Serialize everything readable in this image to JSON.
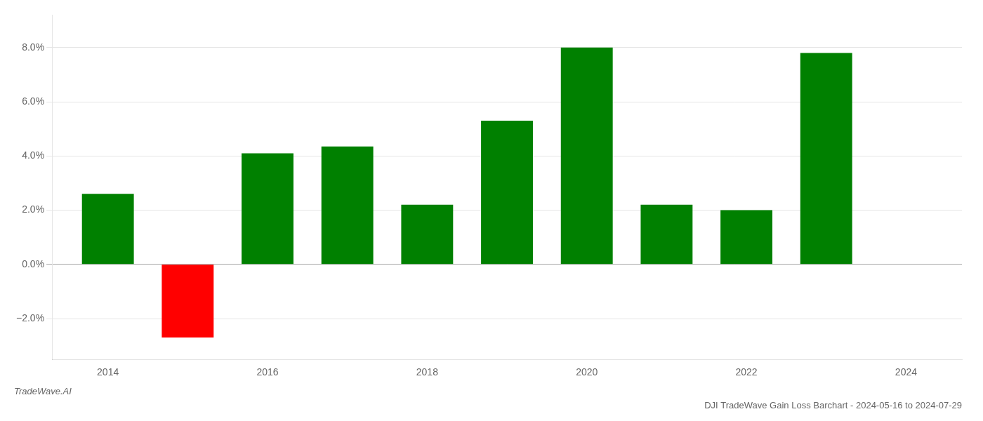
{
  "chart_data": {
    "type": "bar",
    "title": "DJI TradeWave Gain Loss Barchart - 2024-05-16 to 2024-07-29",
    "annotations": [
      "TradeWave.AI"
    ],
    "x": [
      2014,
      2015,
      2016,
      2017,
      2018,
      2019,
      2020,
      2021,
      2022,
      2023
    ],
    "values": [
      2.6,
      -2.7,
      4.1,
      4.35,
      2.2,
      5.3,
      8.0,
      2.2,
      2.0,
      7.8
    ],
    "colors": [
      "#008000",
      "#ff0000",
      "#008000",
      "#008000",
      "#008000",
      "#008000",
      "#008000",
      "#008000",
      "#008000",
      "#008000"
    ],
    "xlim": [
      2013.3,
      2024.7
    ],
    "xticks": [
      2014,
      2016,
      2018,
      2020,
      2022,
      2024
    ],
    "ylim": [
      -3.5,
      9.2
    ],
    "yticks": [
      {
        "value": -2.0,
        "label": "−2.0%"
      },
      {
        "value": 0.0,
        "label": "0.0%"
      },
      {
        "value": 2.0,
        "label": "2.0%"
      },
      {
        "value": 4.0,
        "label": "4.0%"
      },
      {
        "value": 6.0,
        "label": "6.0%"
      },
      {
        "value": 8.0,
        "label": "8.0%"
      }
    ],
    "grid": "y"
  }
}
